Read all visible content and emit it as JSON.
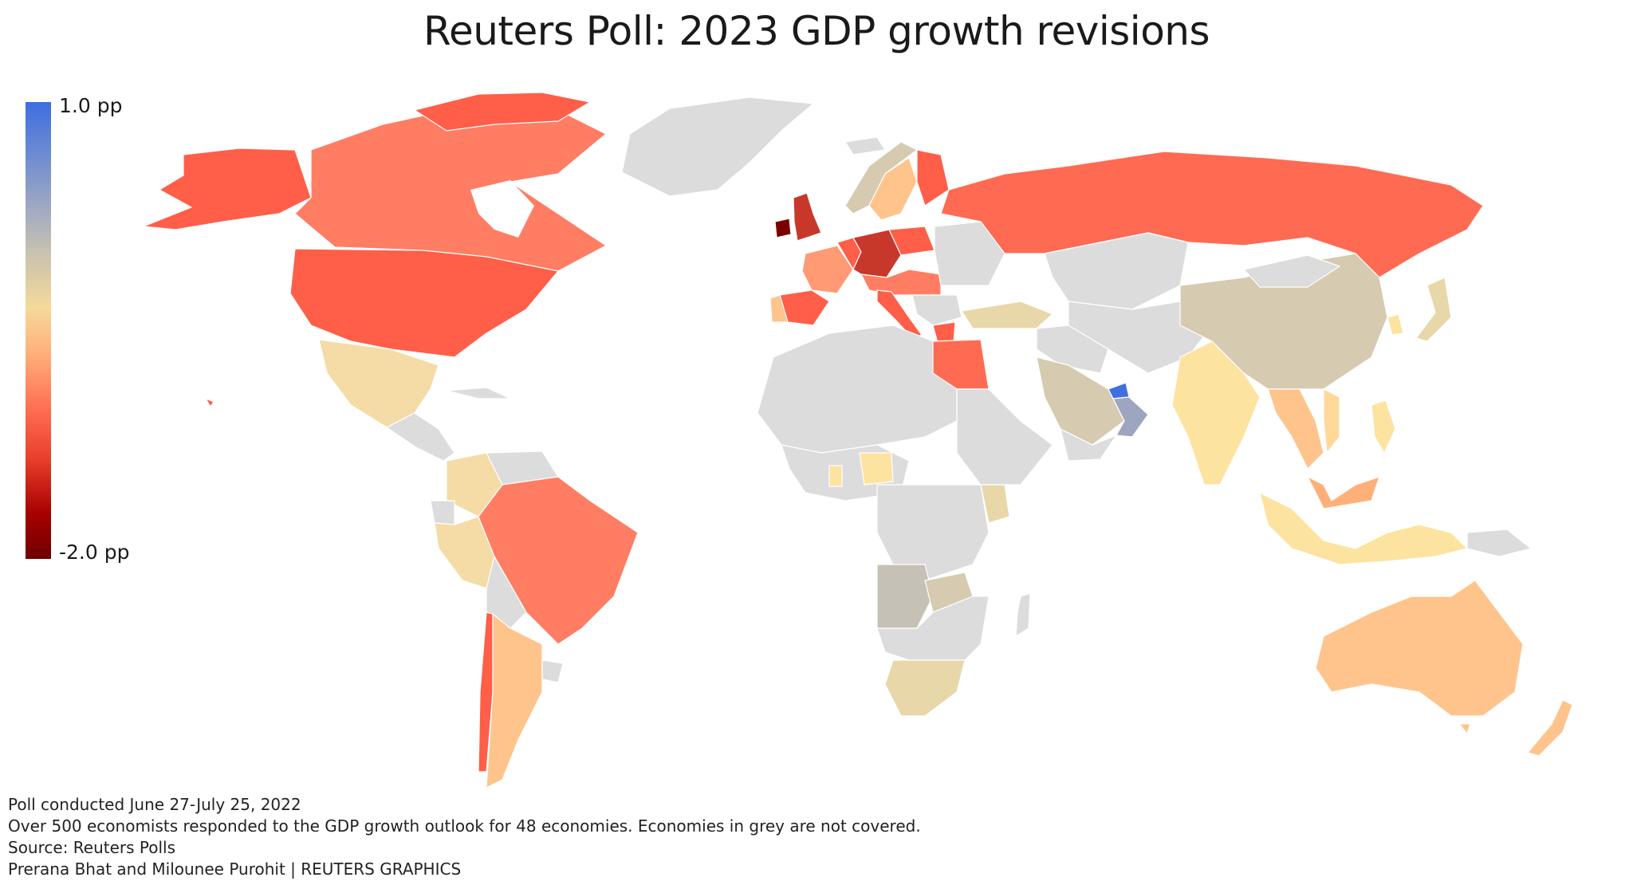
{
  "title": "Reuters Poll: 2023 GDP growth revisions",
  "legend": {
    "max_label": "1.0 pp",
    "min_label": "-2.0 pp",
    "max_value": 1.0,
    "min_value": -2.0,
    "unit": "pp",
    "not_covered_color": "#dcdcdc"
  },
  "footer": {
    "poll_dates": "Poll conducted June 27-July 25, 2022",
    "note": "Over 500 economists responded to the GDP growth outlook for 48 economies. Economies in grey are not covered.",
    "source": "Source: Reuters Polls",
    "credit": "Prerana Bhat and Milounee Purohit | REUTERS GRAPHICS"
  },
  "colors": {
    "deep_red": "#7a0000",
    "dark_red": "#c8382a",
    "red": "#ff5e48",
    "salmon": "#ff7d62",
    "peach": "#ffc48c",
    "light_yellow": "#fde3a0",
    "tan": "#d6cbb0",
    "grey_brown": "#c6c1b6",
    "slate": "#9ea6bf",
    "blue": "#3f6fe0",
    "grey": "#dcdcdc"
  }
}
